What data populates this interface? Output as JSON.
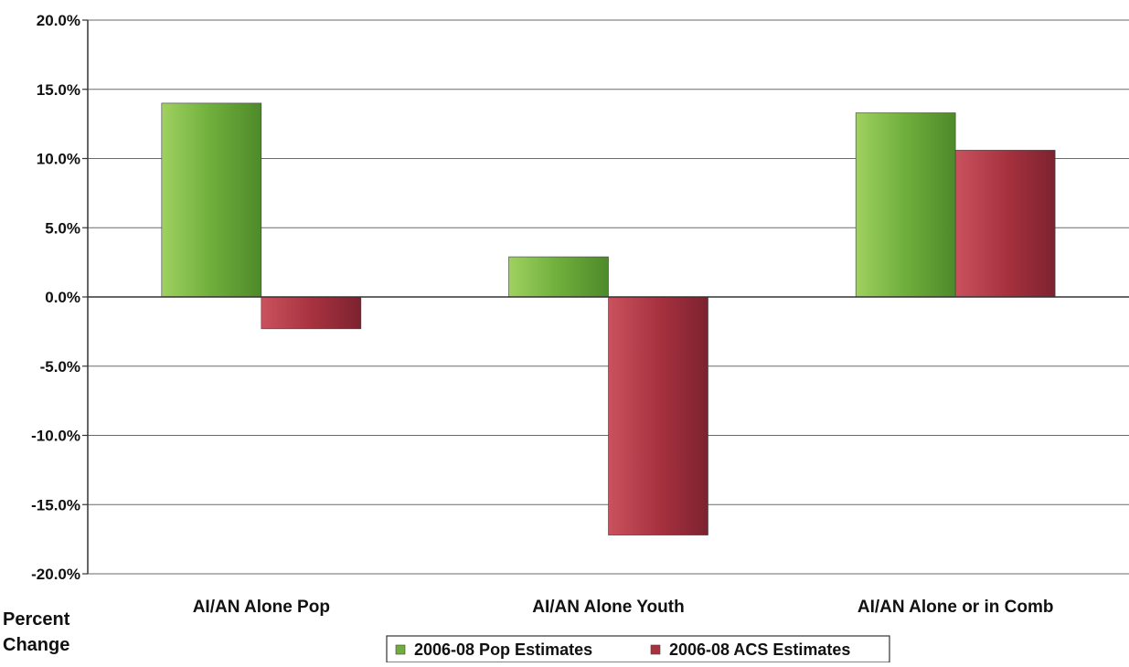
{
  "chart_data": {
    "type": "bar",
    "title": "",
    "xlabel": "",
    "ylabel": "Percent Change",
    "ylabel_lines": [
      "Percent",
      "Change"
    ],
    "categories": [
      "AI/AN Alone Pop",
      "AI/AN Alone Youth",
      "AI/AN Alone or in Comb"
    ],
    "series": [
      {
        "name": "2006-08 Pop Estimates",
        "values": [
          14.0,
          2.9,
          13.3
        ],
        "color": "#6fae3c"
      },
      {
        "name": "2006-08 ACS Estimates",
        "values": [
          -2.3,
          -17.2,
          10.6
        ],
        "color": "#a8323f"
      }
    ],
    "ylim": [
      -20.0,
      20.0
    ],
    "yticks": [
      20.0,
      15.0,
      10.0,
      5.0,
      0.0,
      -5.0,
      -10.0,
      -15.0,
      -20.0
    ],
    "ytick_labels": [
      "20.0%",
      "15.0%",
      "10.0%",
      "5.0%",
      "0.0%",
      "-5.0%",
      "-10.0%",
      "-15.0%",
      "-20.0%"
    ],
    "grid": true,
    "legend_position": "bottom"
  }
}
